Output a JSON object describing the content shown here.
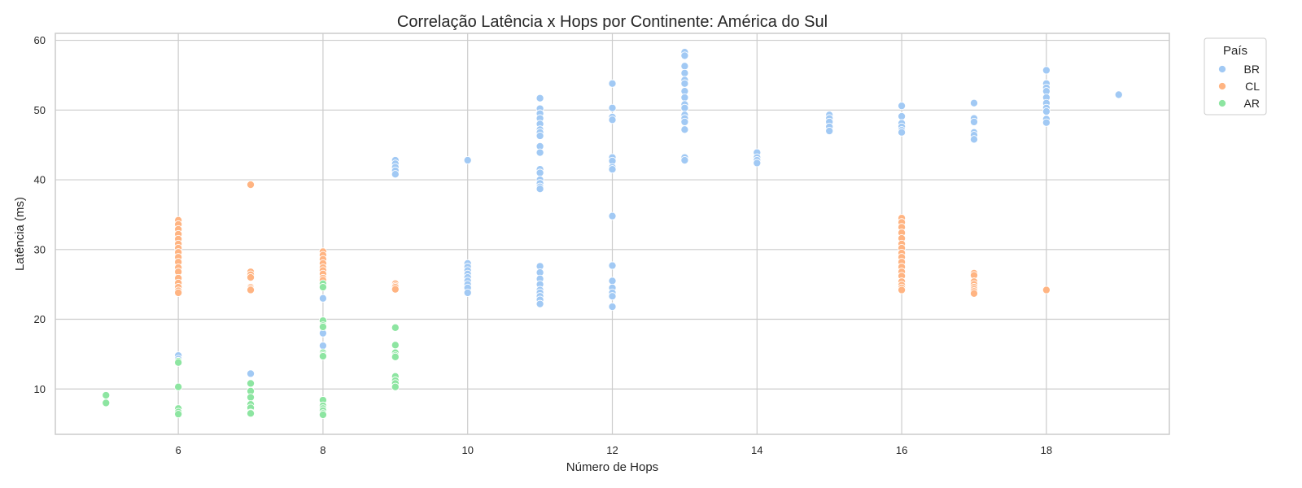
{
  "chart_data": {
    "type": "scatter",
    "title": "Correlação Latência x Hops por Continente: América do Sul",
    "xlabel": "Número de Hops",
    "ylabel": "Latência (ms)",
    "xlim": [
      4.3,
      19.7
    ],
    "ylim": [
      3.5,
      61
    ],
    "xticks": [
      6,
      8,
      10,
      12,
      14,
      16,
      18
    ],
    "yticks": [
      10,
      20,
      30,
      40,
      50,
      60
    ],
    "grid": true,
    "legend": {
      "title": "País",
      "placement": "outside-top-right"
    },
    "series": [
      {
        "name": "BR",
        "color": "#a1c9f4",
        "points": [
          [
            6,
            14.8
          ],
          [
            6,
            14.3
          ],
          [
            7,
            12.2
          ],
          [
            8,
            23
          ],
          [
            8,
            18
          ],
          [
            8,
            16.2
          ],
          [
            8,
            25.5
          ],
          [
            9,
            42.8
          ],
          [
            9,
            42.3
          ],
          [
            9,
            41.8
          ],
          [
            9,
            41.3
          ],
          [
            9,
            40.8
          ],
          [
            10,
            42.8
          ],
          [
            10,
            28
          ],
          [
            10,
            27.5
          ],
          [
            10,
            27
          ],
          [
            10,
            26.5
          ],
          [
            10,
            26
          ],
          [
            10,
            25.5
          ],
          [
            10,
            25
          ],
          [
            10,
            24.5
          ],
          [
            10,
            23.8
          ],
          [
            11,
            51.7
          ],
          [
            11,
            50.2
          ],
          [
            11,
            49.5
          ],
          [
            11,
            48.8
          ],
          [
            11,
            48
          ],
          [
            11,
            47.2
          ],
          [
            11,
            46.8
          ],
          [
            11,
            46.3
          ],
          [
            11,
            44.8
          ],
          [
            11,
            43.9
          ],
          [
            11,
            41.5
          ],
          [
            11,
            41
          ],
          [
            11,
            40
          ],
          [
            11,
            39.5
          ],
          [
            11,
            39
          ],
          [
            11,
            38.7
          ],
          [
            11,
            27.6
          ],
          [
            11,
            26.7
          ],
          [
            11,
            25.8
          ],
          [
            11,
            25
          ],
          [
            11,
            24.2
          ],
          [
            11,
            23.8
          ],
          [
            11,
            23.3
          ],
          [
            11,
            22.8
          ],
          [
            11,
            22.2
          ],
          [
            12,
            53.8
          ],
          [
            12,
            50.3
          ],
          [
            12,
            49
          ],
          [
            12,
            48.6
          ],
          [
            12,
            43.2
          ],
          [
            12,
            42.7
          ],
          [
            12,
            41.8
          ],
          [
            12,
            41.5
          ],
          [
            12,
            34.8
          ],
          [
            12,
            27.7
          ],
          [
            12,
            25.5
          ],
          [
            12,
            24.5
          ],
          [
            12,
            23.8
          ],
          [
            12,
            23.3
          ],
          [
            12,
            21.8
          ],
          [
            13,
            58.3
          ],
          [
            13,
            57.8
          ],
          [
            13,
            56.3
          ],
          [
            13,
            55.3
          ],
          [
            13,
            54.3
          ],
          [
            13,
            53.8
          ],
          [
            13,
            52.7
          ],
          [
            13,
            51.8
          ],
          [
            13,
            50.8
          ],
          [
            13,
            50.3
          ],
          [
            13,
            49.3
          ],
          [
            13,
            48.8
          ],
          [
            13,
            48.3
          ],
          [
            13,
            47.2
          ],
          [
            13,
            43.2
          ],
          [
            13,
            42.8
          ],
          [
            14,
            43.9
          ],
          [
            14,
            43.2
          ],
          [
            14,
            42.8
          ],
          [
            14,
            42.4
          ],
          [
            15,
            49.3
          ],
          [
            15,
            48.8
          ],
          [
            15,
            48.3
          ],
          [
            15,
            47.6
          ],
          [
            15,
            47
          ],
          [
            16,
            50.6
          ],
          [
            16,
            49.1
          ],
          [
            16,
            48.1
          ],
          [
            16,
            47.6
          ],
          [
            16,
            47.1
          ],
          [
            16,
            46.8
          ],
          [
            17,
            51
          ],
          [
            17,
            48.8
          ],
          [
            17,
            48.3
          ],
          [
            17,
            46.8
          ],
          [
            17,
            46.4
          ],
          [
            17,
            45.8
          ],
          [
            18,
            55.7
          ],
          [
            18,
            53.8
          ],
          [
            18,
            53.2
          ],
          [
            18,
            52.7
          ],
          [
            18,
            51.8
          ],
          [
            18,
            51
          ],
          [
            18,
            50.3
          ],
          [
            18,
            49.8
          ],
          [
            18,
            48.7
          ],
          [
            18,
            48.2
          ],
          [
            19,
            52.2
          ]
        ]
      },
      {
        "name": "CL",
        "color": "#ffb482",
        "points": [
          [
            6,
            34.2
          ],
          [
            6,
            33.6
          ],
          [
            6,
            32.9
          ],
          [
            6,
            32.2
          ],
          [
            6,
            31.5
          ],
          [
            6,
            30.8
          ],
          [
            6,
            30.2
          ],
          [
            6,
            29.6
          ],
          [
            6,
            28.9
          ],
          [
            6,
            28.2
          ],
          [
            6,
            27.4
          ],
          [
            6,
            26.8
          ],
          [
            6,
            25.9
          ],
          [
            6,
            25.2
          ],
          [
            6,
            24.6
          ],
          [
            6,
            24.1
          ],
          [
            6,
            23.8
          ],
          [
            7,
            39.3
          ],
          [
            7,
            26.8
          ],
          [
            7,
            26.4
          ],
          [
            7,
            26
          ],
          [
            7,
            24.6
          ],
          [
            7,
            24.4
          ],
          [
            7,
            24.2
          ],
          [
            8,
            29.7
          ],
          [
            8,
            29.2
          ],
          [
            8,
            28.6
          ],
          [
            8,
            28
          ],
          [
            8,
            27.4
          ],
          [
            8,
            27
          ],
          [
            8,
            26.5
          ],
          [
            8,
            25.9
          ],
          [
            8,
            25.6
          ],
          [
            9,
            25.1
          ],
          [
            9,
            24.8
          ],
          [
            9,
            24.6
          ],
          [
            9,
            24.3
          ],
          [
            16,
            34.5
          ],
          [
            16,
            33.9
          ],
          [
            16,
            33.2
          ],
          [
            16,
            32.4
          ],
          [
            16,
            31.6
          ],
          [
            16,
            30.8
          ],
          [
            16,
            30.2
          ],
          [
            16,
            29.5
          ],
          [
            16,
            28.9
          ],
          [
            16,
            28.2
          ],
          [
            16,
            27.5
          ],
          [
            16,
            26.8
          ],
          [
            16,
            26.2
          ],
          [
            16,
            25.4
          ],
          [
            16,
            24.9
          ],
          [
            16,
            24.5
          ],
          [
            16,
            24.2
          ],
          [
            17,
            26.6
          ],
          [
            17,
            26.3
          ],
          [
            17,
            25.4
          ],
          [
            17,
            25
          ],
          [
            17,
            24.6
          ],
          [
            17,
            24.3
          ],
          [
            17,
            24
          ],
          [
            17,
            23.7
          ],
          [
            18,
            24.2
          ]
        ]
      },
      {
        "name": "AR",
        "color": "#8de5a1",
        "points": [
          [
            5,
            9.1
          ],
          [
            5,
            8
          ],
          [
            6,
            14
          ],
          [
            6,
            13.8
          ],
          [
            6,
            10.3
          ],
          [
            6,
            7.2
          ],
          [
            6,
            6.7
          ],
          [
            6,
            6.4
          ],
          [
            7,
            10.8
          ],
          [
            7,
            9.7
          ],
          [
            7,
            8.8
          ],
          [
            7,
            7.8
          ],
          [
            7,
            7.3
          ],
          [
            7,
            6.6
          ],
          [
            7,
            6.5
          ],
          [
            8,
            25.1
          ],
          [
            8,
            24.6
          ],
          [
            8,
            19.8
          ],
          [
            8,
            19.1
          ],
          [
            8,
            18.9
          ],
          [
            8,
            15.2
          ],
          [
            8,
            14.9
          ],
          [
            8,
            14.7
          ],
          [
            8,
            8.4
          ],
          [
            8,
            7.6
          ],
          [
            8,
            7.2
          ],
          [
            8,
            6.9
          ],
          [
            8,
            6.5
          ],
          [
            8,
            6.3
          ],
          [
            9,
            18.8
          ],
          [
            9,
            16.3
          ],
          [
            9,
            15.2
          ],
          [
            9,
            14.8
          ],
          [
            9,
            14.6
          ],
          [
            9,
            11.8
          ],
          [
            9,
            11.2
          ],
          [
            9,
            10.8
          ],
          [
            9,
            10.3
          ]
        ]
      }
    ]
  }
}
